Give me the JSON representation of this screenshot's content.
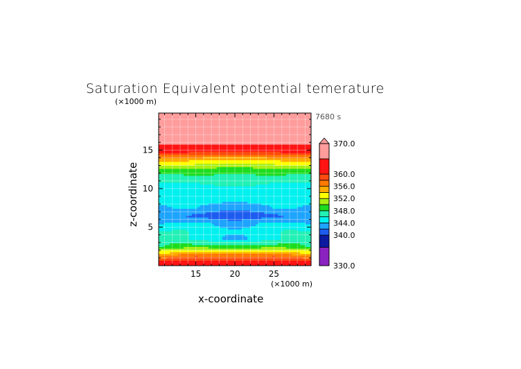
{
  "chart_data": {
    "type": "heatmap",
    "title": "Saturation Equivalent potential temerature",
    "time_label": "7680 s",
    "xlabel": "x-coordinate",
    "ylabel": "z-coordinate",
    "x_unit": "(×1000 m)",
    "y_unit": "(×1000 m)",
    "xlim": [
      10.25,
      29.75
    ],
    "ylim": [
      0,
      19.8
    ],
    "x_ticks": [
      15,
      20,
      25
    ],
    "y_ticks": [
      5,
      10,
      15
    ],
    "grid": true,
    "grid_x": [
      11,
      13,
      15,
      17,
      19,
      21,
      23,
      25,
      27,
      29
    ],
    "grid_z": [
      0.5,
      1.5,
      2.5,
      3.5,
      4.5,
      5.5,
      6.5,
      7.5,
      8.5,
      9.5,
      10.5,
      11.5,
      12.5,
      13.5,
      14.5,
      15.5,
      16.5,
      17.5,
      18.5,
      19.5
    ],
    "values": [
      [
        361,
        361,
        361,
        361,
        361,
        361,
        361,
        361,
        361,
        361
      ],
      [
        355,
        356,
        357,
        356,
        356,
        356,
        356,
        357,
        356,
        355
      ],
      [
        348,
        349,
        349,
        349,
        349,
        349,
        349,
        349,
        349,
        348
      ],
      [
        347.5,
        346.5,
        345.5,
        345,
        343.5,
        343.5,
        345,
        345.5,
        346.5,
        347.5
      ],
      [
        346,
        346.5,
        345.5,
        345,
        344.5,
        344.5,
        345,
        345.5,
        346.5,
        346
      ],
      [
        344,
        344.5,
        344.5,
        344,
        343,
        343,
        344,
        344.5,
        344.5,
        344
      ],
      [
        342.5,
        342,
        341.5,
        341,
        340.8,
        340.8,
        341,
        341.5,
        342,
        342.5
      ],
      [
        343.5,
        344.5,
        344,
        343,
        342.5,
        342.5,
        343,
        344,
        344.5,
        343.5
      ],
      [
        345,
        345,
        345,
        344.8,
        344.5,
        344.5,
        344.8,
        345,
        345,
        345
      ],
      [
        345,
        345,
        345,
        345,
        345,
        345,
        345,
        345,
        345,
        345
      ],
      [
        345.5,
        345.5,
        345.5,
        346,
        346.3,
        346.3,
        346,
        345.5,
        345.5,
        345.5
      ],
      [
        347,
        347,
        347.5,
        347.5,
        347,
        347,
        347.5,
        347.5,
        347,
        347
      ],
      [
        349.5,
        350,
        350,
        349.5,
        349,
        349,
        349.5,
        350,
        350,
        349.5
      ],
      [
        353.5,
        354,
        353,
        352.5,
        352.5,
        352.5,
        352.5,
        353,
        354,
        353.5
      ],
      [
        359,
        359,
        358.5,
        358.5,
        358.5,
        358.5,
        358.5,
        358.5,
        359,
        359
      ],
      [
        364,
        364,
        364,
        364,
        364,
        364,
        364,
        364,
        364,
        364
      ],
      [
        367,
        367,
        367,
        367,
        367,
        367,
        367,
        367,
        367,
        367
      ],
      [
        367,
        367,
        367,
        367,
        367,
        367,
        367,
        367,
        367,
        367
      ],
      [
        367,
        367,
        367,
        367,
        367,
        367,
        367,
        367,
        367,
        367
      ],
      [
        367,
        367,
        367,
        367,
        367,
        367,
        367,
        367,
        367,
        367
      ]
    ],
    "colorbar": {
      "levels": [
        330,
        336,
        340,
        342,
        344,
        346,
        348,
        350,
        352,
        354,
        356,
        358,
        360,
        365,
        370
      ],
      "colors": [
        "#8a22c0",
        "#0c1aa0",
        "#1e5cf0",
        "#1ea4ff",
        "#00f0f0",
        "#22f0b4",
        "#1edc1e",
        "#a8ee14",
        "#ffff00",
        "#ffac00",
        "#ff7a00",
        "#ff4a10",
        "#ff1414",
        "#ff9c9c"
      ],
      "tick_labels": [
        "370.0",
        "360.0",
        "356.0",
        "352.0",
        "348.0",
        "344.0",
        "340.0",
        "330.0"
      ],
      "tick_values": [
        370,
        360,
        356,
        352,
        348,
        344,
        340,
        330
      ],
      "extend": "max"
    }
  }
}
